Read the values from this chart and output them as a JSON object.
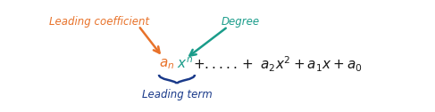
{
  "bg_color": "#ffffff",
  "formula_color": "#1a1a1a",
  "an_color": "#e8722a",
  "xn_color": "#1a9c8a",
  "leading_coeff_label": "Leading coefficient",
  "leading_coeff_color": "#e8722a",
  "degree_label": "Degree",
  "degree_color": "#1a9c8a",
  "leading_term_label": "Leading term",
  "leading_term_color": "#1a3a8a",
  "figsize": [
    4.87,
    1.26
  ],
  "dpi": 100,
  "formula_fontsize": 11,
  "label_fontsize": 8.5
}
